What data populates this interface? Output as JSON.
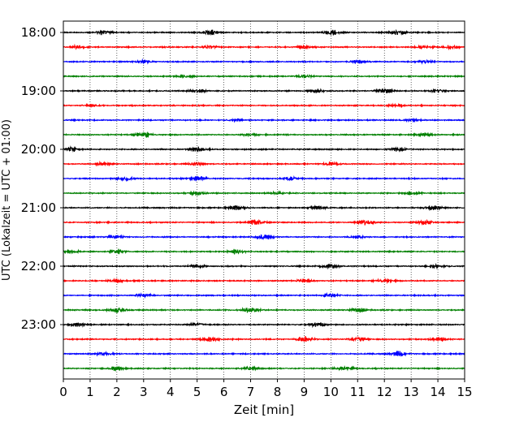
{
  "chart_data": {
    "type": "line",
    "title": "",
    "xlabel": "Zeit  [min]",
    "ylabel": "UTC (Lokalzeit = UTC + 01:00)",
    "xlim": [
      0,
      15
    ],
    "x_ticks": [
      "0",
      "1",
      "2",
      "3",
      "4",
      "5",
      "6",
      "7",
      "8",
      "9",
      "10",
      "11",
      "12",
      "13",
      "14",
      "15"
    ],
    "y_ticks": [
      "18:00",
      "19:00",
      "20:00",
      "21:00",
      "22:00",
      "23:00"
    ],
    "trace_interval_minutes": 15,
    "trace_count": 24,
    "start_time": "18:00",
    "vertical_grid": true,
    "grid_style": "dotted",
    "trace_colors": [
      "#000000",
      "#ff0000",
      "#0000ff",
      "#008000"
    ],
    "bursts": [
      [
        [
          1.5,
          0.9
        ],
        [
          5.5,
          0.9
        ],
        [
          10.0,
          1.0
        ],
        [
          12.5,
          1.0
        ]
      ],
      [
        [
          0.5,
          0.5
        ],
        [
          5.5,
          0.6
        ],
        [
          9.0,
          0.6
        ],
        [
          13.5,
          0.7
        ],
        [
          14.5,
          0.7
        ]
      ],
      [
        [
          3.0,
          0.5
        ],
        [
          11.0,
          0.5
        ],
        [
          13.5,
          0.5
        ]
      ],
      [
        [
          4.5,
          0.5
        ],
        [
          9.0,
          0.6
        ]
      ],
      [
        [
          5.0,
          0.7
        ],
        [
          9.5,
          0.6
        ],
        [
          12.0,
          0.9
        ],
        [
          14.0,
          0.6
        ]
      ],
      [
        [
          1.0,
          0.4
        ],
        [
          12.5,
          0.4
        ]
      ],
      [
        [
          6.5,
          0.4
        ],
        [
          13.0,
          0.4
        ]
      ],
      [
        [
          3.0,
          1.0
        ],
        [
          7.0,
          0.7
        ],
        [
          13.5,
          0.6
        ]
      ],
      [
        [
          0.3,
          0.9
        ],
        [
          5.0,
          0.8
        ],
        [
          12.5,
          0.7
        ]
      ],
      [
        [
          1.5,
          0.6
        ],
        [
          5.0,
          0.6
        ],
        [
          10.0,
          0.6
        ]
      ],
      [
        [
          2.3,
          0.8
        ],
        [
          5.0,
          0.9
        ],
        [
          8.5,
          0.7
        ]
      ],
      [
        [
          5.0,
          0.7
        ],
        [
          8.0,
          0.5
        ],
        [
          13.0,
          0.6
        ]
      ],
      [
        [
          6.5,
          0.8
        ],
        [
          9.5,
          0.7
        ],
        [
          13.8,
          0.9
        ]
      ],
      [
        [
          7.2,
          1.0
        ],
        [
          11.3,
          1.0
        ],
        [
          13.5,
          0.8
        ]
      ],
      [
        [
          2.0,
          0.6
        ],
        [
          7.5,
          0.9
        ],
        [
          11.0,
          0.6
        ]
      ],
      [
        [
          2.0,
          0.9
        ],
        [
          6.5,
          0.9
        ],
        [
          0.3,
          0.6
        ]
      ],
      [
        [
          5.0,
          0.8
        ],
        [
          10.0,
          0.9
        ],
        [
          14.0,
          0.7
        ]
      ],
      [
        [
          2.0,
          0.6
        ],
        [
          9.0,
          0.6
        ],
        [
          12.0,
          0.6
        ]
      ],
      [
        [
          3.0,
          0.7
        ],
        [
          10.0,
          0.8
        ]
      ],
      [
        [
          2.0,
          1.0
        ],
        [
          7.0,
          1.1
        ],
        [
          11.0,
          0.9
        ]
      ],
      [
        [
          0.5,
          0.7
        ],
        [
          5.0,
          0.7
        ],
        [
          9.5,
          0.8
        ]
      ],
      [
        [
          5.5,
          1.0
        ],
        [
          9.0,
          1.1
        ],
        [
          11.0,
          1.0
        ],
        [
          14.0,
          0.8
        ]
      ],
      [
        [
          1.5,
          0.8
        ],
        [
          12.5,
          0.9
        ]
      ],
      [
        [
          2.0,
          0.9
        ],
        [
          7.0,
          0.7
        ],
        [
          10.5,
          0.7
        ]
      ]
    ]
  }
}
